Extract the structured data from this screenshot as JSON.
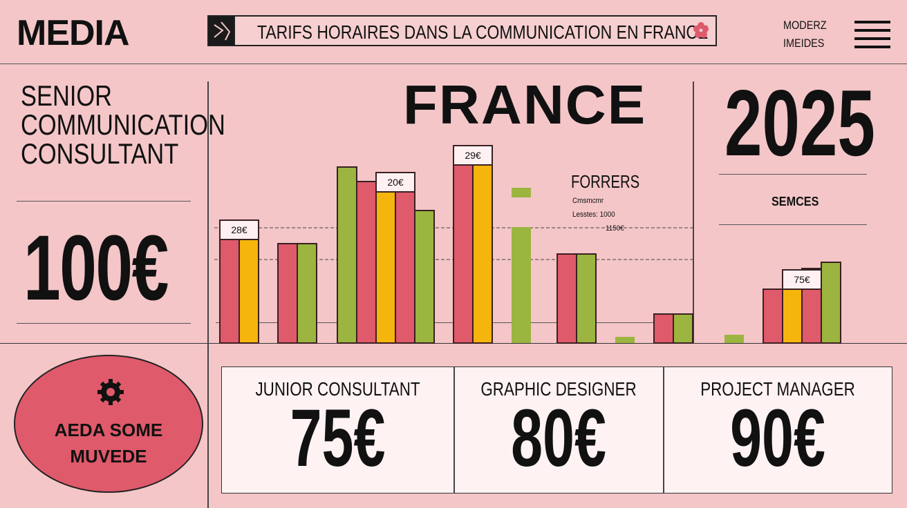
{
  "header": {
    "brand": "MEDIA",
    "title": "TARIFS HORAIRES DANS LA COMMUNICATION EN FRANCE",
    "right_line1": "MODERZ",
    "right_line2": "IMEIDES"
  },
  "left_panel": {
    "role_line1": "SENIOR",
    "role_line2": "COMMUNICATION",
    "role_line3": "CONSULTANT",
    "price": "100€",
    "badge_line1": "AEDA SOME",
    "badge_line2": "MUVEDE"
  },
  "main": {
    "country": "FRANCE",
    "year": "2025",
    "services_label": "SEMCES",
    "legend_title": "FORRERS",
    "legend_line1": "Cmsmcmr",
    "legend_line2": "Lesstes: 1000",
    "legend_line3": "1150€"
  },
  "cards": [
    {
      "label": "JUNIOR CONSULTANT",
      "price": "75€"
    },
    {
      "label": "GRAPHIC DESIGNER",
      "price": "80€"
    },
    {
      "label": "PROJECT MANAGER",
      "price": "90€"
    }
  ],
  "colors": {
    "red": "#df5a6b",
    "yellow": "#f5b50d",
    "green": "#9bb540",
    "background": "#f4c6c8"
  },
  "chart_data": {
    "type": "bar",
    "ylim": [
      0,
      100
    ],
    "groups": [
      {
        "bars": [
          {
            "color": "red",
            "value": 50
          },
          {
            "color": "yellow",
            "value": 50
          }
        ],
        "label": "28€"
      },
      {
        "bars": [
          {
            "color": "red",
            "value": 48
          },
          {
            "color": "green",
            "value": 48
          }
        ]
      },
      {
        "bars": [
          {
            "color": "green",
            "value": 85
          },
          {
            "color": "red",
            "value": 78
          },
          {
            "color": "yellow",
            "value": 73
          },
          {
            "color": "red",
            "value": 73
          },
          {
            "color": "green",
            "value": 64
          }
        ],
        "label": "20€",
        "label_index": 2
      },
      {
        "bars": [
          {
            "color": "red",
            "value": 86
          },
          {
            "color": "yellow",
            "value": 86
          }
        ],
        "label": "29€"
      },
      {
        "bars": [
          {
            "color": "green",
            "value": 75
          },
          {
            "color": "green",
            "value": 56
          }
        ],
        "stack": true
      },
      {
        "bars": [
          {
            "color": "red",
            "value": 43
          },
          {
            "color": "green",
            "value": 43
          }
        ]
      },
      {
        "bars": [
          {
            "color": "green",
            "value": 3
          }
        ]
      },
      {
        "bars": [
          {
            "color": "red",
            "value": 14
          },
          {
            "color": "green",
            "value": 14
          }
        ]
      },
      {
        "bars": [
          {
            "color": "green",
            "value": 4
          }
        ]
      },
      {
        "bars": [
          {
            "color": "red",
            "value": 26
          },
          {
            "color": "yellow",
            "value": 26
          },
          {
            "color": "red",
            "value": 36
          },
          {
            "color": "green",
            "value": 39
          }
        ],
        "label": "75€",
        "label_index": 1
      }
    ]
  }
}
